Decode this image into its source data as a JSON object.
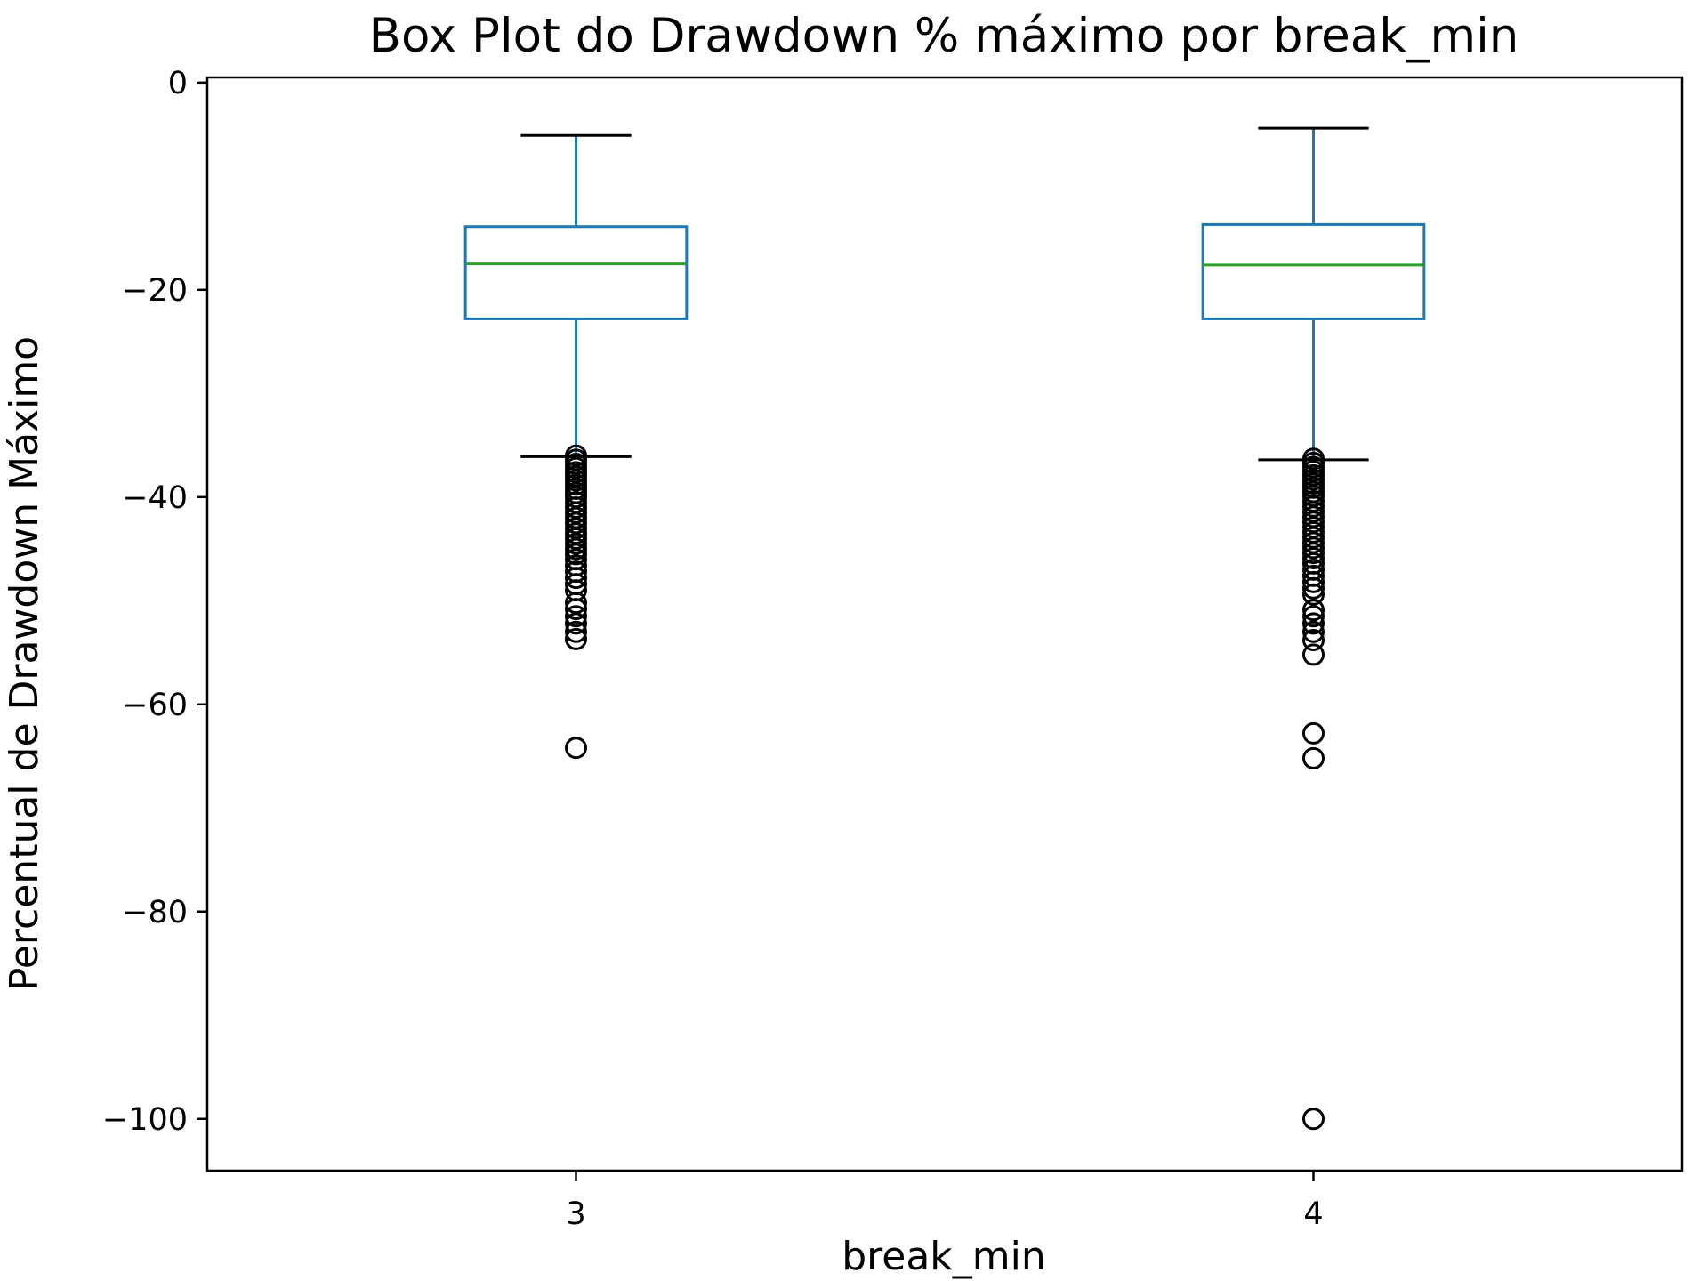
{
  "chart_data": {
    "type": "box",
    "title": "Box Plot do Drawdown % máximo por break_min",
    "xlabel": "break_min",
    "ylabel": "Percentual de Drawdown Máximo",
    "ylim": [
      -105,
      0.5
    ],
    "yticks": [
      0,
      -20,
      -40,
      -60,
      -80,
      -100
    ],
    "ytick_labels": [
      "0",
      "−20",
      "−40",
      "−60",
      "−80",
      "−100"
    ],
    "categories": [
      "3",
      "4"
    ],
    "grid": false,
    "colors": {
      "box": "#1f77b4",
      "median": "#2ca02c",
      "cap": "#000000",
      "flier": "#000000"
    },
    "series": [
      {
        "category": "3",
        "whisker_high": -5.1,
        "q3": -13.9,
        "median": -17.5,
        "q1": -22.8,
        "whisker_low": -36.1,
        "outliers": [
          -36.0,
          -36.4,
          -36.8,
          -37.2,
          -37.6,
          -38.0,
          -38.4,
          -38.8,
          -39.2,
          -39.6,
          -40.0,
          -40.5,
          -41.0,
          -41.5,
          -42.0,
          -42.5,
          -43.0,
          -43.5,
          -44.0,
          -44.5,
          -45.0,
          -45.5,
          -46.0,
          -46.6,
          -47.2,
          -47.8,
          -48.4,
          -49.0,
          -50.2,
          -50.8,
          -51.5,
          -52.2,
          -53.0,
          -53.7,
          -64.2
        ]
      },
      {
        "category": "4",
        "whisker_high": -4.4,
        "q3": -13.7,
        "median": -17.6,
        "q1": -22.8,
        "whisker_low": -36.4,
        "outliers": [
          -36.3,
          -36.7,
          -37.1,
          -37.5,
          -37.9,
          -38.3,
          -38.7,
          -39.1,
          -39.5,
          -39.9,
          -40.4,
          -40.9,
          -41.4,
          -41.9,
          -42.4,
          -42.9,
          -43.4,
          -43.9,
          -44.4,
          -44.9,
          -45.4,
          -45.9,
          -46.4,
          -47.0,
          -47.6,
          -48.2,
          -48.8,
          -49.4,
          -50.9,
          -51.5,
          -52.2,
          -53.0,
          -53.8,
          -55.2,
          -62.8,
          -65.2,
          -100.0
        ]
      }
    ]
  }
}
